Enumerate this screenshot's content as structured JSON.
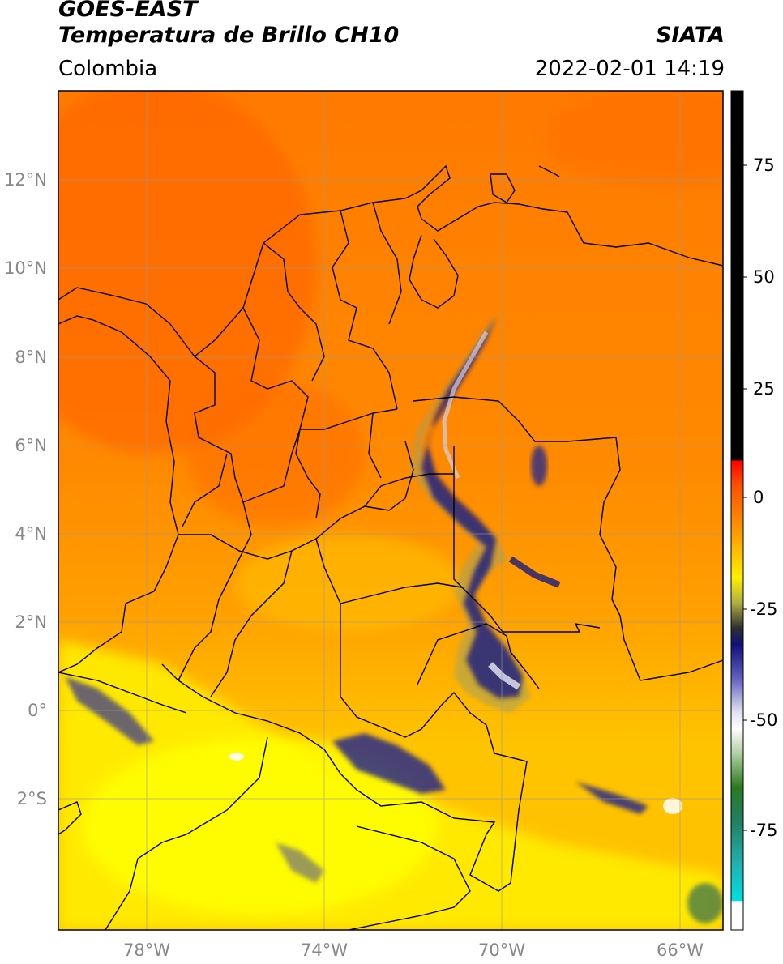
{
  "header": {
    "satellite": "GOES-EAST",
    "product": "Temperatura de Brillo CH10",
    "agency": "SIATA",
    "region": "Colombia",
    "datetime": "2022-02-01 14:19"
  },
  "map": {
    "lon_range": [
      -80,
      -65
    ],
    "lat_range": [
      -5,
      14
    ],
    "lon_ticks": [
      {
        "value": -78,
        "label": "78°W"
      },
      {
        "value": -74,
        "label": "74°W"
      },
      {
        "value": -70,
        "label": "70°W"
      },
      {
        "value": -66,
        "label": "66°W"
      }
    ],
    "lat_ticks": [
      {
        "value": 12,
        "label": "12°N"
      },
      {
        "value": 10,
        "label": "10°N"
      },
      {
        "value": 8,
        "label": "8°N"
      },
      {
        "value": 6,
        "label": "6°N"
      },
      {
        "value": 4,
        "label": "4°N"
      },
      {
        "value": 2,
        "label": "2°N"
      },
      {
        "value": 0,
        "label": "0°"
      },
      {
        "value": -2,
        "label": "2°S"
      }
    ],
    "colors": {
      "orange_red": "#ff6a00",
      "orange": "#ff9a00",
      "yellow": "#ffee00",
      "navy": "#1a1a80",
      "grid": "#999999"
    }
  },
  "colorbar": {
    "range": [
      -95,
      90
    ],
    "ticks": [
      {
        "value": 75,
        "label": "75"
      },
      {
        "value": 50,
        "label": "50"
      },
      {
        "value": 25,
        "label": "25"
      },
      {
        "value": 0,
        "label": "0"
      },
      {
        "value": -25,
        "label": "-25"
      },
      {
        "value": -50,
        "label": "-50"
      },
      {
        "value": -75,
        "label": "-75"
      }
    ]
  }
}
